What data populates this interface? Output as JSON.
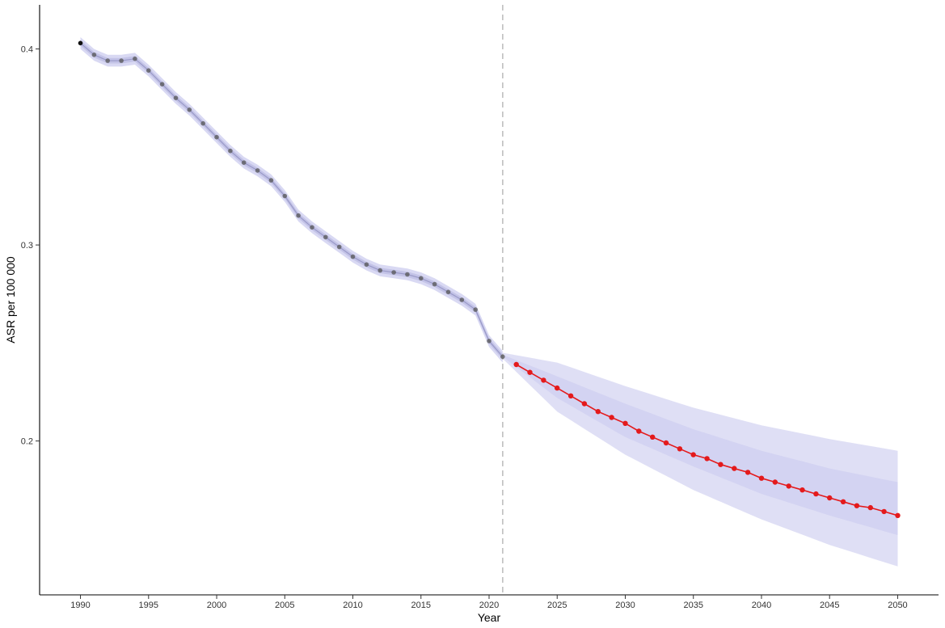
{
  "chart_data": {
    "type": "line",
    "xlabel": "Year",
    "ylabel": "ASR per 100 000",
    "xlim": [
      1987,
      2053
    ],
    "ylim": [
      0.1215,
      0.4225
    ],
    "x_ticks": [
      1990,
      1995,
      2000,
      2005,
      2010,
      2015,
      2020,
      2025,
      2030,
      2035,
      2040,
      2045,
      2050
    ],
    "y_ticks": [
      0.2,
      0.3,
      0.4
    ],
    "y_tick_labels": [
      "0.2",
      "0.3",
      "0.4"
    ],
    "forecast_start_year": 2021,
    "grid": false,
    "colors": {
      "observed": "#555555",
      "forecast": "#e41a1c",
      "band": "#c9c9ee",
      "divider": "#bbbbbb"
    },
    "series": [
      {
        "role": "observed",
        "x": [
          1990,
          1991,
          1992,
          1993,
          1994,
          1995,
          1996,
          1997,
          1998,
          1999,
          2000,
          2001,
          2002,
          2003,
          2004,
          2005,
          2006,
          2007,
          2008,
          2009,
          2010,
          2011,
          2012,
          2013,
          2014,
          2015,
          2016,
          2017,
          2018,
          2019,
          2020,
          2021
        ],
        "values": [
          0.403,
          0.397,
          0.394,
          0.394,
          0.395,
          0.389,
          0.382,
          0.375,
          0.369,
          0.362,
          0.355,
          0.348,
          0.342,
          0.338,
          0.333,
          0.325,
          0.315,
          0.309,
          0.304,
          0.299,
          0.294,
          0.29,
          0.287,
          0.286,
          0.285,
          0.283,
          0.28,
          0.276,
          0.272,
          0.267,
          0.251,
          0.243
        ]
      },
      {
        "role": "forecast",
        "x": [
          2022,
          2023,
          2024,
          2025,
          2026,
          2027,
          2028,
          2029,
          2030,
          2031,
          2032,
          2033,
          2034,
          2035,
          2036,
          2037,
          2038,
          2039,
          2040,
          2041,
          2042,
          2043,
          2044,
          2045,
          2046,
          2047,
          2048,
          2049,
          2050
        ],
        "values": [
          0.239,
          0.235,
          0.231,
          0.227,
          0.223,
          0.219,
          0.215,
          0.212,
          0.209,
          0.205,
          0.202,
          0.199,
          0.196,
          0.193,
          0.191,
          0.188,
          0.186,
          0.184,
          0.181,
          0.179,
          0.177,
          0.175,
          0.173,
          0.171,
          0.169,
          0.167,
          0.166,
          0.164,
          0.162
        ]
      }
    ],
    "bands": [
      {
        "name": "outer",
        "x": [
          2021,
          2025,
          2030,
          2035,
          2040,
          2045,
          2050
        ],
        "lower": [
          0.242,
          0.215,
          0.193,
          0.175,
          0.16,
          0.147,
          0.136
        ],
        "upper": [
          0.245,
          0.24,
          0.228,
          0.217,
          0.208,
          0.201,
          0.195
        ]
      },
      {
        "name": "inner",
        "x": [
          2021,
          2025,
          2030,
          2035,
          2040,
          2045,
          2050
        ],
        "lower": [
          0.243,
          0.222,
          0.202,
          0.187,
          0.173,
          0.162,
          0.152
        ],
        "upper": [
          0.244,
          0.233,
          0.219,
          0.206,
          0.195,
          0.186,
          0.179
        ]
      }
    ]
  }
}
